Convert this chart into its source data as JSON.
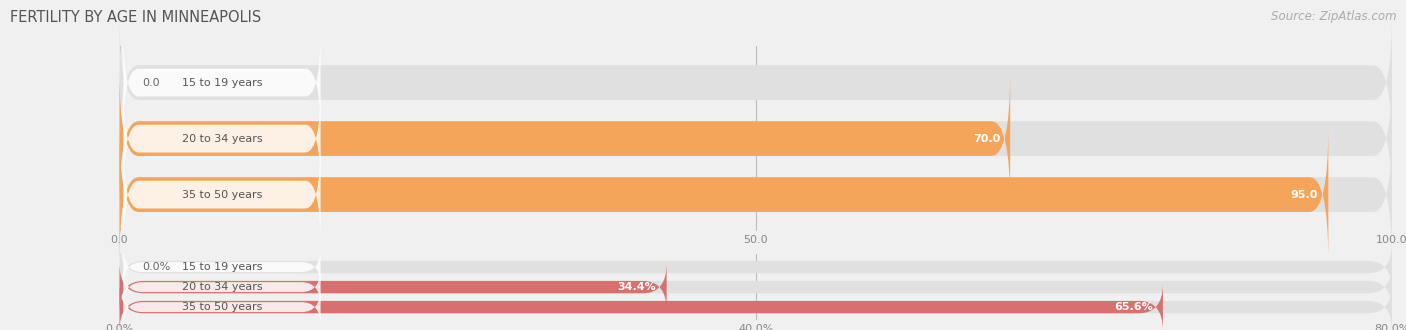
{
  "title": "FERTILITY BY AGE IN MINNEAPOLIS",
  "source": "Source: ZipAtlas.com",
  "background_color": "#f0f0f0",
  "chart1": {
    "categories": [
      "15 to 19 years",
      "20 to 34 years",
      "35 to 50 years"
    ],
    "values": [
      0.0,
      70.0,
      95.0
    ],
    "bar_color": "#f5a55a",
    "bar_bg_color": "#e0e0e0",
    "xlim": [
      0,
      100
    ],
    "xticks": [
      0.0,
      50.0,
      100.0
    ]
  },
  "chart2": {
    "categories": [
      "15 to 19 years",
      "20 to 34 years",
      "35 to 50 years"
    ],
    "values": [
      0.0,
      34.4,
      65.6
    ],
    "bar_color": "#d97070",
    "bar_bg_color": "#e0e0e0",
    "xlim": [
      0,
      80
    ],
    "xticks": [
      0.0,
      40.0,
      80.0
    ],
    "xtick_labels": [
      "0.0%",
      "40.0%",
      "80.0%"
    ]
  },
  "title_fontsize": 10.5,
  "source_fontsize": 8.5,
  "label_fontsize": 8,
  "tick_fontsize": 8,
  "bar_height": 0.62,
  "bar_label_fontsize": 8,
  "value_label_fontsize": 8
}
